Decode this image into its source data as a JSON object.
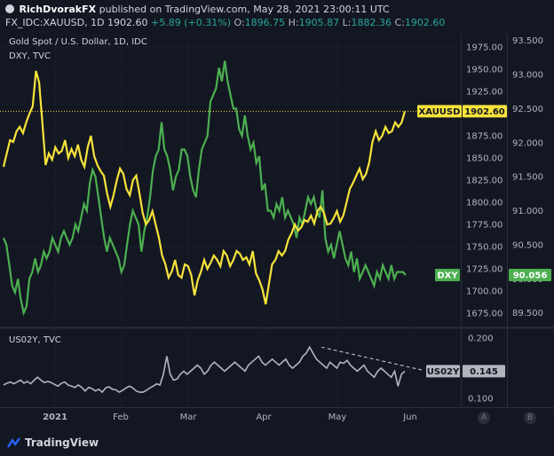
{
  "header": {
    "author": "RichDvorakFX",
    "published": "published on TradingView.com, May 28, 2021 23:00:11 UTC",
    "symbol": "FX_IDC:XAUUSD, 1D",
    "last": "1902.60",
    "change": "+5.89 (+0.31%)",
    "o_label": "O:",
    "o_val": "1896.75",
    "h_label": "H:",
    "h_val": "1905.87",
    "l_label": "L:",
    "l_val": "1882.36",
    "c_label": "C:",
    "c_val": "1902.60"
  },
  "legends": {
    "gold": "Gold Spot / U.S. Dollar, 1D, IDC",
    "dxy": "DXY, TVC",
    "us02y": "US02Y, TVC"
  },
  "footer": {
    "brand": "TradingView",
    "scale_a": "A",
    "scale_b": "B"
  },
  "colors": {
    "background": "#131722",
    "gold": "#f7e33b",
    "dxy": "#4caf50",
    "us02y": "#b2b5be",
    "grid": "#1e222d"
  },
  "chart_data": [
    {
      "type": "line",
      "title": "Gold Spot / U.S. Dollar, 1D, IDC",
      "x_ticks": [
        "2021",
        "Feb",
        "Mar",
        "Apr",
        "May",
        "Jun"
      ],
      "ylim_left": [
        1660,
        1990
      ],
      "left_ticks": [
        "1975.00",
        "1950.00",
        "1925.00",
        "1900.00",
        "1875.00",
        "1850.00",
        "1825.00",
        "1800.00",
        "1775.00",
        "1750.00",
        "1725.00",
        "1700.00",
        "1675.00"
      ],
      "ylim_right": [
        89.3,
        93.6
      ],
      "right_ticks": [
        "93.500",
        "93.000",
        "92.500",
        "92.000",
        "91.500",
        "91.000",
        "90.500",
        "90.000",
        "89.500"
      ],
      "series": [
        {
          "name": "XAUUSD",
          "axis": "left",
          "last_label": "1902.60",
          "values": [
            1840,
            1855,
            1870,
            1868,
            1880,
            1885,
            1878,
            1890,
            1900,
            1908,
            1948,
            1935,
            1890,
            1842,
            1855,
            1848,
            1862,
            1855,
            1858,
            1870,
            1850,
            1860,
            1852,
            1865,
            1848,
            1840,
            1862,
            1875,
            1852,
            1842,
            1835,
            1830,
            1810,
            1795,
            1808,
            1825,
            1838,
            1832,
            1815,
            1808,
            1825,
            1830,
            1810,
            1788,
            1775,
            1780,
            1790,
            1775,
            1760,
            1740,
            1730,
            1715,
            1722,
            1735,
            1718,
            1715,
            1730,
            1728,
            1718,
            1695,
            1712,
            1722,
            1735,
            1725,
            1732,
            1740,
            1735,
            1728,
            1745,
            1740,
            1728,
            1735,
            1745,
            1742,
            1735,
            1738,
            1730,
            1745,
            1720,
            1712,
            1702,
            1685,
            1708,
            1730,
            1735,
            1745,
            1740,
            1745,
            1758,
            1765,
            1775,
            1768,
            1772,
            1780,
            1778,
            1785,
            1776,
            1790,
            1795,
            1788,
            1775,
            1776,
            1782,
            1790,
            1778,
            1785,
            1800,
            1815,
            1822,
            1830,
            1838,
            1826,
            1832,
            1845,
            1868,
            1880,
            1870,
            1875,
            1885,
            1878,
            1880,
            1890,
            1885,
            1890,
            1902.6
          ],
          "ylim": [
            1660,
            1990
          ]
        },
        {
          "name": "DXY",
          "axis": "right",
          "last_label": "90.056",
          "values": [
            90.6,
            90.5,
            90.2,
            89.9,
            89.8,
            90.0,
            89.7,
            89.5,
            89.6,
            90.0,
            90.1,
            90.3,
            90.1,
            90.2,
            90.4,
            90.3,
            90.4,
            90.6,
            90.5,
            90.4,
            90.6,
            90.7,
            90.6,
            90.5,
            90.6,
            90.8,
            90.7,
            90.9,
            91.1,
            91.0,
            91.4,
            91.6,
            91.5,
            91.2,
            90.9,
            90.6,
            90.4,
            90.6,
            90.5,
            90.4,
            90.3,
            90.1,
            90.2,
            90.5,
            90.8,
            91.0,
            90.9,
            90.8,
            90.4,
            90.7,
            90.9,
            91.2,
            91.6,
            91.8,
            91.9,
            92.3,
            91.9,
            91.8,
            91.6,
            91.3,
            91.5,
            91.6,
            91.9,
            91.9,
            91.8,
            91.5,
            91.3,
            91.2,
            91.6,
            91.9,
            92.0,
            92.1,
            92.6,
            92.7,
            92.8,
            93.1,
            92.9,
            93.2,
            92.9,
            92.7,
            92.5,
            92.5,
            92.2,
            92.1,
            92.4,
            92.1,
            91.9,
            92.0,
            91.7,
            91.8,
            91.3,
            91.4,
            91.0,
            91.0,
            90.9,
            91.1,
            91.0,
            91.2,
            90.9,
            91.0,
            90.9,
            90.8,
            90.6,
            90.9,
            90.8,
            91.0,
            91.2,
            91.1,
            91.2,
            91.0,
            90.9,
            91.3,
            90.6,
            90.4,
            90.5,
            90.3,
            90.5,
            90.7,
            90.5,
            90.3,
            90.2,
            90.4,
            90.1,
            90.3,
            90.0,
            90.1,
            90.2,
            90.1,
            90.0,
            89.9,
            90.1,
            90.0,
            90.2,
            90.1,
            90.0,
            90.2,
            90.0,
            90.1,
            90.1,
            90.1,
            90.056
          ],
          "ylim": [
            89.3,
            93.6
          ]
        }
      ]
    },
    {
      "type": "line",
      "title": "US02Y, TVC",
      "right_ticks": [
        "0.200",
        "0.150",
        "0.100"
      ],
      "ylim": [
        0.085,
        0.215
      ],
      "series": [
        {
          "name": "US02Y",
          "last_label": "0.145",
          "values": [
            0.122,
            0.125,
            0.127,
            0.124,
            0.127,
            0.13,
            0.125,
            0.128,
            0.124,
            0.13,
            0.135,
            0.13,
            0.126,
            0.128,
            0.126,
            0.123,
            0.12,
            0.125,
            0.127,
            0.122,
            0.12,
            0.118,
            0.122,
            0.118,
            0.112,
            0.118,
            0.116,
            0.112,
            0.115,
            0.11,
            0.117,
            0.119,
            0.115,
            0.114,
            0.11,
            0.113,
            0.117,
            0.12,
            0.117,
            0.112,
            0.11,
            0.11,
            0.113,
            0.117,
            0.12,
            0.124,
            0.122,
            0.14,
            0.17,
            0.14,
            0.13,
            0.132,
            0.14,
            0.145,
            0.14,
            0.145,
            0.15,
            0.155,
            0.15,
            0.14,
            0.145,
            0.155,
            0.16,
            0.155,
            0.15,
            0.145,
            0.15,
            0.155,
            0.16,
            0.155,
            0.15,
            0.145,
            0.155,
            0.16,
            0.165,
            0.17,
            0.16,
            0.155,
            0.16,
            0.165,
            0.16,
            0.155,
            0.16,
            0.165,
            0.155,
            0.15,
            0.155,
            0.16,
            0.17,
            0.175,
            0.185,
            0.175,
            0.165,
            0.16,
            0.155,
            0.15,
            0.16,
            0.155,
            0.15,
            0.16,
            0.158,
            0.163,
            0.155,
            0.15,
            0.145,
            0.15,
            0.155,
            0.145,
            0.14,
            0.135,
            0.145,
            0.15,
            0.145,
            0.14,
            0.135,
            0.145,
            0.12,
            0.14,
            0.145
          ],
          "trend_line_from": 0.185,
          "trend_line_to": 0.146
        }
      ]
    }
  ]
}
